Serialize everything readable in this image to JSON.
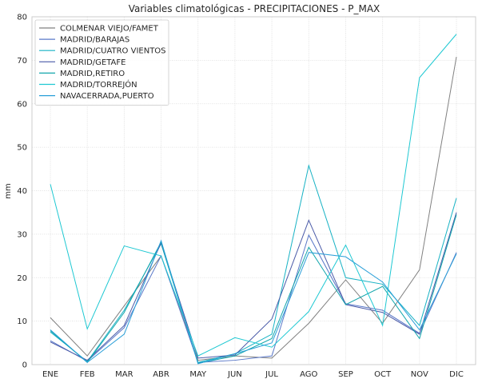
{
  "chart_data": {
    "type": "line",
    "title": "Variables climatológicas - PRECIPITACIONES - P_MAX",
    "xlabel": "",
    "ylabel": "mm",
    "categories": [
      "ENE",
      "FEB",
      "MAR",
      "ABR",
      "MAY",
      "JUN",
      "JUL",
      "AGO",
      "SEP",
      "OCT",
      "NOV",
      "DIC"
    ],
    "yticks": [
      0,
      10,
      20,
      30,
      40,
      50,
      60,
      70,
      80
    ],
    "ylim": [
      0,
      80
    ],
    "grid": true,
    "legend_position": "top-left",
    "series": [
      {
        "name": "COLMENAR VIEJO/FAMET",
        "color": "#808080",
        "values": [
          10.8,
          2.0,
          13.5,
          25.0,
          1.0,
          2.0,
          1.5,
          9.5,
          19.5,
          9.5,
          21.8,
          70.8
        ]
      },
      {
        "name": "MADRID/BARAJAS",
        "color": "#5a78c8",
        "values": [
          5.5,
          0.8,
          8.5,
          25.0,
          0.5,
          1.0,
          2.0,
          29.8,
          14.0,
          12.5,
          7.2,
          25.8
        ]
      },
      {
        "name": "MADRID/CUATRO VIENTOS",
        "color": "#17b2c4",
        "values": [
          7.5,
          0.7,
          12.5,
          27.8,
          0.5,
          2.5,
          7.0,
          45.8,
          20.0,
          18.5,
          9.0,
          38.3
        ]
      },
      {
        "name": "MADRID/GETAFE",
        "color": "#4a5aa8",
        "values": [
          5.2,
          1.0,
          9.0,
          28.0,
          1.5,
          2.2,
          10.5,
          33.2,
          13.8,
          12.0,
          7.0,
          35.0
        ]
      },
      {
        "name": "MADRID,RETIRO",
        "color": "#12a6ac",
        "values": [
          7.8,
          0.5,
          12.0,
          28.2,
          0.3,
          2.0,
          6.0,
          27.0,
          13.8,
          18.0,
          6.0,
          34.5
        ]
      },
      {
        "name": "MADRID/TORREJÓN",
        "color": "#1ec8d2",
        "values": [
          41.5,
          8.2,
          27.3,
          25.0,
          2.0,
          6.2,
          4.0,
          12.2,
          27.5,
          9.0,
          66.0,
          76.0
        ]
      },
      {
        "name": "NAVACERRADA,PUERTO",
        "color": "#2a9fd8",
        "values": [
          8.0,
          0.5,
          7.0,
          28.5,
          0.2,
          2.5,
          5.0,
          25.8,
          24.8,
          19.0,
          8.0,
          25.5
        ]
      }
    ]
  }
}
